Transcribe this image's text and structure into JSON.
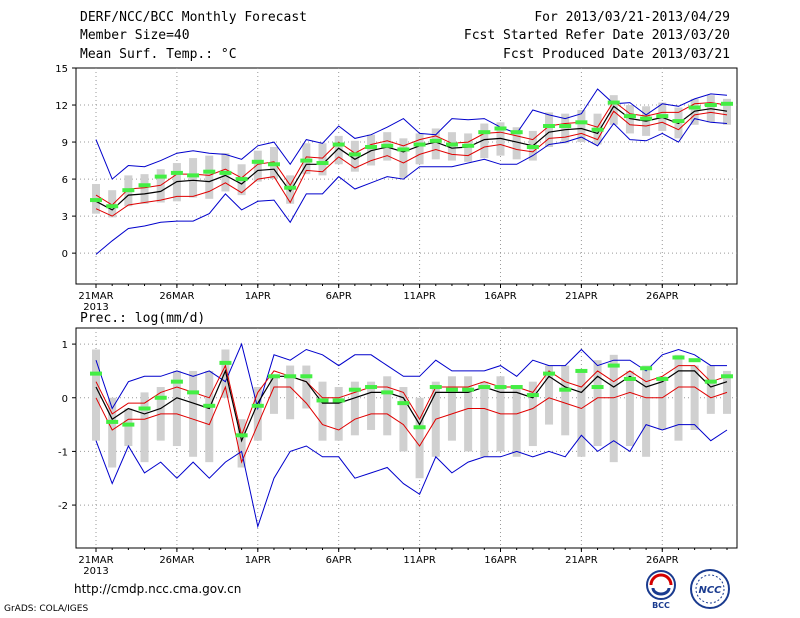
{
  "header": {
    "title": "DERF/NCC/BCC Monthly Forecast",
    "member_size": "Member Size=40",
    "variable": "Mean Surf. Temp.: °C",
    "period": "For 2013/03/21-2013/04/29",
    "started": "Fcst Started Refer Date 2013/03/20",
    "produced": "Fcst Produced Date 2013/03/21"
  },
  "footer": {
    "url": "http://cmdp.ncc.cma.gov.cn",
    "credit": "GrADS: COLA/IGES",
    "logo_left": "BCC",
    "logo_right": "NCC"
  },
  "colors": {
    "envelope": "#0000cc",
    "spread": "#e00000",
    "mean": "#000000",
    "obs": "#44ee44",
    "box": "#d0d0d0"
  },
  "chart_data": [
    {
      "type": "line",
      "title": "Mean Surf. Temp.: °C",
      "x_tick_labels": [
        "21MAR",
        "26MAR",
        "1APR",
        "6APR",
        "11APR",
        "16APR",
        "21APR",
        "26APR"
      ],
      "x_tick_days": [
        0,
        5,
        10,
        15,
        20,
        25,
        30,
        35
      ],
      "year_label": "2013",
      "ylim": [
        -2.5,
        15
      ],
      "yticks": [
        0,
        3,
        6,
        9,
        12,
        15
      ],
      "n_days": 40,
      "series": [
        {
          "name": "max",
          "values": [
            9.2,
            6.0,
            7.1,
            7.0,
            7.5,
            8.1,
            8.3,
            8.1,
            8.0,
            7.6,
            8.7,
            9.0,
            7.2,
            9.2,
            8.9,
            10.3,
            9.3,
            9.6,
            10.2,
            10.9,
            9.7,
            9.6,
            10.9,
            10.8,
            10.9,
            10.2,
            9.7,
            11.6,
            11.2,
            10.9,
            11.3,
            13.3,
            12.1,
            12.2,
            11.2,
            12.1,
            11.9,
            12.5,
            12.9,
            12.8
          ]
        },
        {
          "name": "upper",
          "values": [
            4.7,
            3.9,
            5.2,
            5.3,
            5.5,
            6.4,
            6.4,
            6.3,
            6.8,
            6.1,
            7.2,
            7.4,
            5.5,
            7.8,
            7.7,
            9.0,
            8.1,
            8.8,
            9.1,
            8.7,
            9.2,
            9.5,
            8.9,
            9.0,
            9.7,
            9.8,
            9.5,
            9.2,
            10.3,
            10.5,
            10.6,
            10.2,
            12.3,
            11.3,
            11.1,
            11.4,
            11.4,
            12.1,
            12.2,
            12.0
          ]
        },
        {
          "name": "mean",
          "values": [
            4.2,
            3.5,
            4.7,
            4.8,
            5.0,
            5.8,
            5.9,
            5.8,
            6.3,
            5.6,
            6.7,
            6.8,
            5.0,
            7.2,
            7.2,
            8.5,
            7.6,
            8.3,
            8.6,
            8.2,
            8.7,
            9.0,
            8.5,
            8.6,
            9.2,
            9.3,
            9.0,
            8.7,
            9.8,
            10.0,
            10.1,
            9.7,
            11.9,
            10.9,
            10.7,
            11.0,
            10.5,
            11.5,
            11.7,
            11.5
          ]
        },
        {
          "name": "lower",
          "values": [
            3.6,
            3.0,
            3.9,
            4.1,
            4.3,
            4.6,
            4.6,
            5.0,
            5.7,
            4.9,
            6.0,
            6.2,
            4.1,
            6.7,
            6.6,
            7.8,
            6.9,
            7.5,
            7.9,
            7.3,
            8.0,
            8.4,
            8.0,
            7.9,
            8.6,
            8.8,
            8.4,
            8.2,
            9.3,
            9.4,
            9.7,
            9.2,
            11.5,
            10.4,
            10.3,
            10.6,
            10.0,
            11.2,
            11.4,
            11.2
          ]
        },
        {
          "name": "min",
          "values": [
            -0.1,
            1.0,
            2.0,
            2.2,
            2.5,
            2.6,
            2.6,
            3.2,
            4.8,
            3.5,
            4.2,
            4.3,
            2.5,
            4.8,
            4.8,
            6.2,
            5.2,
            5.7,
            6.2,
            6.0,
            7.0,
            7.0,
            7.0,
            7.3,
            7.6,
            7.2,
            7.2,
            7.9,
            8.8,
            9.0,
            9.4,
            8.7,
            10.5,
            9.2,
            9.1,
            9.7,
            9.0,
            10.9,
            10.6,
            10.5
          ]
        },
        {
          "name": "observed",
          "values": [
            4.3,
            3.8,
            5.1,
            5.5,
            6.2,
            6.5,
            6.3,
            6.6,
            6.5,
            6.0,
            7.4,
            7.2,
            5.3,
            7.5,
            7.3,
            8.8,
            8.0,
            8.6,
            8.7,
            8.4,
            8.8,
            9.1,
            8.8,
            8.7,
            9.8,
            10.1,
            9.8,
            8.6,
            10.3,
            10.3,
            10.6,
            10.0,
            12.2,
            11.1,
            10.9,
            11.1,
            10.7,
            11.8,
            12.0,
            12.1
          ]
        }
      ],
      "box_ranges": [
        [
          3.2,
          5.6
        ],
        [
          2.9,
          5.1
        ],
        [
          3.8,
          6.3
        ],
        [
          4.0,
          6.4
        ],
        [
          4.1,
          6.8
        ],
        [
          4.2,
          7.3
        ],
        [
          4.5,
          7.7
        ],
        [
          4.4,
          7.9
        ],
        [
          5.0,
          8.1
        ],
        [
          4.7,
          7.2
        ],
        [
          5.8,
          8.3
        ],
        [
          6.0,
          8.6
        ],
        [
          4.0,
          6.3
        ],
        [
          6.4,
          8.9
        ],
        [
          6.3,
          8.9
        ],
        [
          7.2,
          9.5
        ],
        [
          6.6,
          9.1
        ],
        [
          7.1,
          9.6
        ],
        [
          7.5,
          9.8
        ],
        [
          6.1,
          9.3
        ],
        [
          7.2,
          9.7
        ],
        [
          7.6,
          10.1
        ],
        [
          7.5,
          9.8
        ],
        [
          7.4,
          9.7
        ],
        [
          7.7,
          10.5
        ],
        [
          7.9,
          10.6
        ],
        [
          7.6,
          10.2
        ],
        [
          7.5,
          9.9
        ],
        [
          8.6,
          11.4
        ],
        [
          8.9,
          11.3
        ],
        [
          9.0,
          11.6
        ],
        [
          8.8,
          11.3
        ],
        [
          10.4,
          12.8
        ],
        [
          9.7,
          12.0
        ],
        [
          9.5,
          11.9
        ],
        [
          9.9,
          12.2
        ],
        [
          9.3,
          11.8
        ],
        [
          10.4,
          12.5
        ],
        [
          10.6,
          12.8
        ],
        [
          10.4,
          12.5
        ]
      ]
    },
    {
      "type": "line",
      "title": "Prec.: log(mm/d)",
      "x_tick_labels": [
        "21MAR",
        "26MAR",
        "1APR",
        "6APR",
        "11APR",
        "16APR",
        "21APR",
        "26APR"
      ],
      "x_tick_days": [
        0,
        5,
        10,
        15,
        20,
        25,
        30,
        35
      ],
      "year_label": "2013",
      "ylim": [
        -2.8,
        1.3
      ],
      "yticks": [
        -2,
        -1,
        0,
        1
      ],
      "n_days": 40,
      "series": [
        {
          "name": "max",
          "values": [
            0.7,
            -0.2,
            0.3,
            0.4,
            0.4,
            0.5,
            0.4,
            0.5,
            0.3,
            1.0,
            -0.2,
            0.8,
            0.7,
            0.9,
            0.8,
            0.6,
            0.8,
            0.8,
            0.6,
            0.4,
            0.4,
            0.7,
            0.5,
            0.5,
            0.5,
            0.6,
            0.4,
            0.7,
            0.6,
            0.6,
            0.9,
            0.6,
            0.7,
            0.7,
            0.5,
            0.8,
            0.9,
            0.8,
            0.6,
            0.6
          ]
        },
        {
          "name": "upper",
          "values": [
            0.3,
            -0.3,
            -0.1,
            -0.1,
            0.1,
            0.2,
            0.1,
            0.0,
            0.6,
            -0.7,
            0.1,
            0.5,
            0.4,
            0.3,
            0.0,
            0.0,
            0.1,
            0.2,
            0.2,
            0.1,
            -0.4,
            0.2,
            0.2,
            0.2,
            0.3,
            0.2,
            0.2,
            0.1,
            0.5,
            0.3,
            0.2,
            0.5,
            0.3,
            0.5,
            0.3,
            0.4,
            0.6,
            0.6,
            0.3,
            0.4
          ]
        },
        {
          "name": "mean",
          "values": [
            0.2,
            -0.4,
            -0.2,
            -0.3,
            -0.2,
            0.0,
            -0.1,
            -0.2,
            0.5,
            -0.8,
            -0.1,
            0.4,
            0.4,
            0.3,
            -0.1,
            -0.1,
            0.0,
            0.1,
            0.1,
            0.0,
            -0.5,
            0.1,
            0.1,
            0.1,
            0.2,
            0.1,
            0.1,
            0.0,
            0.4,
            0.2,
            0.1,
            0.4,
            0.2,
            0.4,
            0.2,
            0.3,
            0.5,
            0.5,
            0.2,
            0.3
          ]
        },
        {
          "name": "lower",
          "values": [
            0.0,
            -0.6,
            -0.4,
            -0.4,
            -0.3,
            -0.3,
            -0.4,
            -0.5,
            0.2,
            -1.2,
            -0.5,
            0.2,
            0.2,
            -0.1,
            -0.5,
            -0.6,
            -0.4,
            -0.3,
            -0.3,
            -0.5,
            -0.9,
            -0.4,
            -0.3,
            -0.2,
            -0.2,
            -0.3,
            -0.3,
            -0.2,
            0.0,
            -0.1,
            -0.2,
            0.0,
            0.0,
            0.1,
            0.0,
            0.0,
            0.2,
            0.2,
            0.0,
            0.1
          ]
        },
        {
          "name": "min",
          "values": [
            -0.8,
            -1.6,
            -0.9,
            -1.4,
            -1.2,
            -1.5,
            -1.2,
            -1.5,
            -1.2,
            -1.0,
            -2.4,
            -1.5,
            -1.0,
            -0.9,
            -1.1,
            -1.1,
            -1.5,
            -1.4,
            -1.3,
            -1.6,
            -1.8,
            -1.1,
            -1.4,
            -1.2,
            -1.1,
            -1.1,
            -1.0,
            -1.1,
            -1.0,
            -1.1,
            -0.7,
            -1.0,
            -0.8,
            -1.0,
            -0.5,
            -0.6,
            -0.5,
            -0.5,
            -0.8,
            -0.6
          ]
        },
        {
          "name": "observed",
          "values": [
            0.45,
            -0.45,
            -0.5,
            -0.2,
            0.0,
            0.3,
            0.1,
            -0.15,
            0.65,
            -0.7,
            -0.15,
            0.4,
            0.4,
            0.4,
            -0.05,
            -0.05,
            0.15,
            0.2,
            0.1,
            -0.1,
            -0.55,
            0.2,
            0.15,
            0.15,
            0.2,
            0.2,
            0.2,
            0.05,
            0.45,
            0.15,
            0.5,
            0.2,
            0.6,
            0.35,
            0.55,
            0.35,
            0.75,
            0.7,
            0.3,
            0.4
          ]
        }
      ],
      "box_ranges": [
        [
          -0.8,
          0.9
        ],
        [
          -1.3,
          0.0
        ],
        [
          -0.9,
          -0.2
        ],
        [
          -1.2,
          0.1
        ],
        [
          -0.8,
          0.2
        ],
        [
          -0.9,
          0.5
        ],
        [
          -1.1,
          0.5
        ],
        [
          -1.2,
          0.5
        ],
        [
          0.0,
          0.9
        ],
        [
          -1.3,
          -0.4
        ],
        [
          -0.8,
          0.2
        ],
        [
          -0.3,
          0.4
        ],
        [
          -0.4,
          0.6
        ],
        [
          -0.2,
          0.6
        ],
        [
          -0.8,
          0.3
        ],
        [
          -0.8,
          0.2
        ],
        [
          -0.7,
          0.3
        ],
        [
          -0.6,
          0.3
        ],
        [
          -0.7,
          0.4
        ],
        [
          -1.0,
          0.2
        ],
        [
          -1.5,
          0.0
        ],
        [
          -1.1,
          0.3
        ],
        [
          -0.8,
          0.4
        ],
        [
          -1.0,
          0.4
        ],
        [
          -1.1,
          0.3
        ],
        [
          -1.0,
          0.4
        ],
        [
          -1.1,
          0.2
        ],
        [
          -0.9,
          0.3
        ],
        [
          -0.5,
          0.6
        ],
        [
          -0.7,
          0.6
        ],
        [
          -1.1,
          0.5
        ],
        [
          -0.9,
          0.7
        ],
        [
          -1.2,
          0.8
        ],
        [
          -0.9,
          0.5
        ],
        [
          -1.1,
          0.6
        ],
        [
          -0.6,
          0.4
        ],
        [
          -0.8,
          0.8
        ],
        [
          -0.6,
          0.6
        ],
        [
          -0.3,
          0.6
        ],
        [
          -0.3,
          0.5
        ]
      ]
    }
  ]
}
